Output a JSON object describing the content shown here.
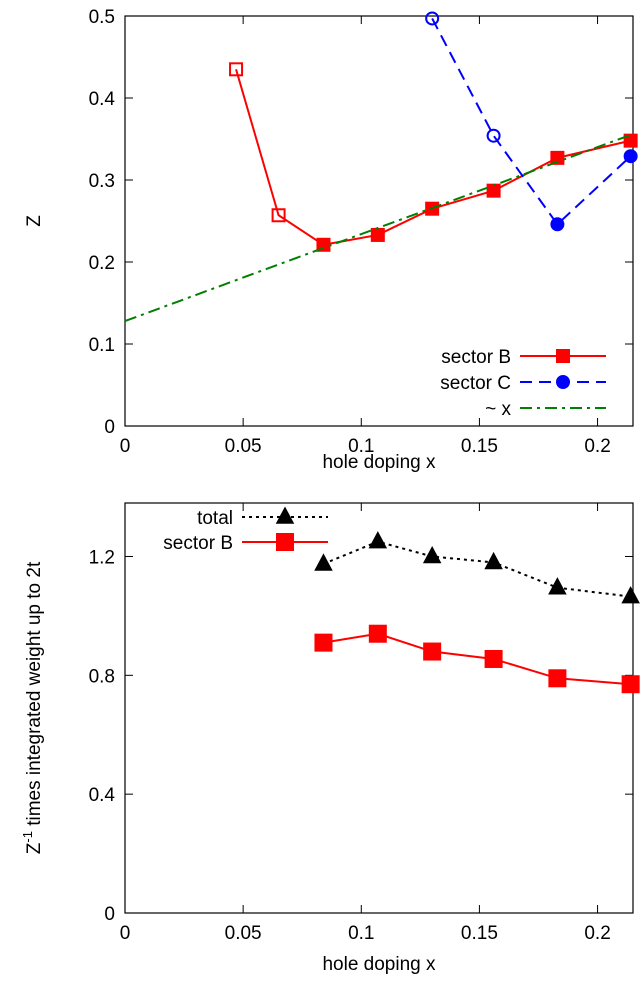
{
  "chart_data": [
    {
      "type": "line",
      "xlabel": "hole doping x",
      "ylabel": "Z",
      "xlim": [
        0,
        0.215
      ],
      "ylim": [
        0,
        0.5
      ],
      "xticks": [
        0,
        0.05,
        0.1,
        0.15,
        0.2
      ],
      "xtick_labels": [
        "0",
        "0.05",
        "0.1",
        "0.15",
        "0.2"
      ],
      "yticks": [
        0,
        0.1,
        0.2,
        0.3,
        0.4,
        0.5
      ],
      "ytick_labels": [
        "0",
        "0.1",
        "0.2",
        "0.3",
        "0.4",
        "0.5"
      ],
      "legend_position": "bottom-right",
      "series": [
        {
          "name": "sector B",
          "color": "#ff0000",
          "marker": "square",
          "line": "solid",
          "x": [
            0.047,
            0.065,
            0.084,
            0.107,
            0.13,
            0.156,
            0.183,
            0.214
          ],
          "y": [
            0.435,
            0.257,
            0.221,
            0.233,
            0.265,
            0.287,
            0.327,
            0.348
          ],
          "hollow": [
            true,
            true,
            false,
            false,
            false,
            false,
            false,
            false
          ]
        },
        {
          "name": "sector C",
          "color": "#0000ff",
          "marker": "circle",
          "line": "dashed",
          "x": [
            0.13,
            0.156,
            0.183,
            0.214
          ],
          "y": [
            0.497,
            0.354,
            0.246,
            0.329
          ],
          "hollow": [
            true,
            true,
            false,
            false
          ]
        },
        {
          "name": "~ x",
          "color": "#008000",
          "marker": "none",
          "line": "dashdot",
          "x": [
            0,
            0.215
          ],
          "y": [
            0.128,
            0.356
          ]
        }
      ]
    },
    {
      "type": "line",
      "xlabel": "hole doping x",
      "ylabel_prefix": "Z",
      "ylabel_sup": "-1",
      "ylabel_rest": " times  integrated weight up to 2t",
      "xlim": [
        0,
        0.215
      ],
      "ylim": [
        0,
        1.38
      ],
      "xticks": [
        0,
        0.05,
        0.1,
        0.15,
        0.2
      ],
      "xtick_labels": [
        "0",
        "0.05",
        "0.1",
        "0.15",
        "0.2"
      ],
      "yticks": [
        0,
        0.4,
        0.8,
        1.2
      ],
      "ytick_labels": [
        "0",
        "0.4",
        "0.8",
        "1.2"
      ],
      "legend_position": "top-left",
      "series": [
        {
          "name": "total",
          "color": "#000000",
          "marker": "triangle",
          "line": "dotted",
          "x": [
            0.084,
            0.107,
            0.13,
            0.156,
            0.183,
            0.214
          ],
          "y": [
            1.175,
            1.25,
            1.2,
            1.18,
            1.095,
            1.065
          ]
        },
        {
          "name": "sector B",
          "color": "#ff0000",
          "marker": "square",
          "line": "solid",
          "x": [
            0.084,
            0.107,
            0.13,
            0.156,
            0.183,
            0.214
          ],
          "y": [
            0.91,
            0.94,
            0.88,
            0.855,
            0.79,
            0.77
          ]
        }
      ]
    }
  ]
}
